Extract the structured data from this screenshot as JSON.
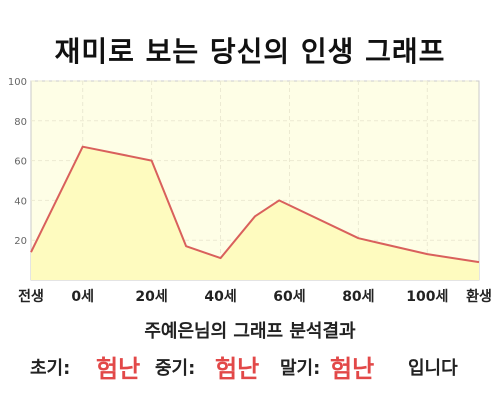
{
  "chart_data": {
    "type": "area",
    "title": "재미로 보는 당신의 인생 그래프",
    "x_tick_labels": [
      "전생",
      "0세",
      "20세",
      "40세",
      "60세",
      "80세",
      "100세",
      "환생"
    ],
    "x_ages": [
      -15,
      0,
      20,
      40,
      60,
      80,
      100,
      115
    ],
    "ylim": [
      0,
      100
    ],
    "y_ticks": [
      20,
      40,
      60,
      80,
      100
    ],
    "grid": true,
    "series": [
      {
        "points": [
          {
            "x": -15,
            "y": 14
          },
          {
            "x": 0,
            "y": 67
          },
          {
            "x": 20,
            "y": 60
          },
          {
            "x": 30,
            "y": 17
          },
          {
            "x": 40,
            "y": 11
          },
          {
            "x": 50,
            "y": 32
          },
          {
            "x": 57,
            "y": 40
          },
          {
            "x": 80,
            "y": 21
          },
          {
            "x": 100,
            "y": 13
          },
          {
            "x": 115,
            "y": 9
          }
        ]
      }
    ],
    "colors": {
      "line": "#d9605c",
      "fill": "#fefbbf",
      "plot_bg": "#fefee6",
      "grid": "#ebe9d2"
    }
  },
  "result": {
    "heading": "주예은님의 그래프 분석결과",
    "early_label": "초기:",
    "early_value": "험난",
    "mid_label": "중기:",
    "mid_value": "험난",
    "late_label": "말기:",
    "late_value": "험난",
    "suffix": "입니다"
  }
}
